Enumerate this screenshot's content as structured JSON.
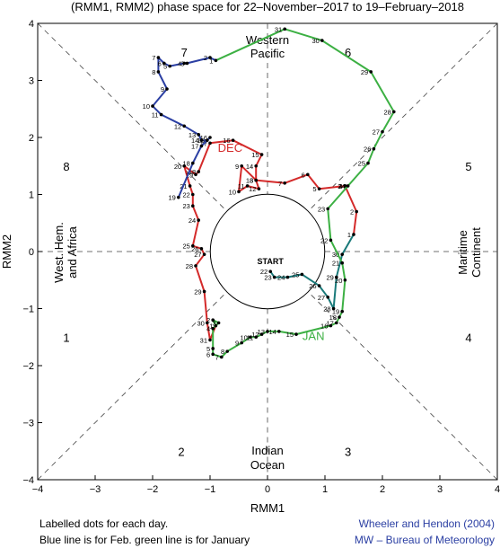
{
  "chart_data": {
    "type": "line",
    "title": "(RMM1, RMM2) phase space for   22–November–2017 to 19–February–2018",
    "xlabel": "RMM1",
    "ylabel": "RMM2",
    "xlim": [
      -4,
      4
    ],
    "ylim": [
      -4,
      4
    ],
    "x_ticks": [
      "−4",
      "−3",
      "−2",
      "−1",
      "0",
      "1",
      "2",
      "3",
      "4"
    ],
    "y_ticks": [
      "−4",
      "−3",
      "−2",
      "−1",
      "0",
      "1",
      "2",
      "3",
      "4"
    ],
    "phase_labels": [
      {
        "text": "1",
        "x": -3.5,
        "y": -1.5
      },
      {
        "text": "2",
        "x": -1.5,
        "y": -3.5
      },
      {
        "text": "3",
        "x": 1.4,
        "y": -3.5
      },
      {
        "text": "4",
        "x": 3.5,
        "y": -1.5
      },
      {
        "text": "5",
        "x": 3.5,
        "y": 1.5
      },
      {
        "text": "6",
        "x": 1.4,
        "y": 3.5
      },
      {
        "text": "7",
        "x": -1.45,
        "y": 3.5
      },
      {
        "text": "8",
        "x": -3.5,
        "y": 1.5
      }
    ],
    "region_labels": {
      "western_pacific": [
        "Western",
        "Pacific"
      ],
      "west_hem": [
        "West. Hem.",
        "and Africa"
      ],
      "maritime": [
        "Maritime",
        "Continent"
      ],
      "indian": [
        "Indian",
        "Ocean"
      ]
    },
    "start_label": "START",
    "series": [
      {
        "name": "Nov",
        "color": "#1a7a7a",
        "points": [
          {
            "day": "22",
            "x": 0.05,
            "y": -0.35
          },
          {
            "day": "23",
            "x": 0.12,
            "y": -0.45
          },
          {
            "day": "24",
            "x": 0.35,
            "y": -0.45
          },
          {
            "day": "25",
            "x": 0.6,
            "y": -0.4
          },
          {
            "day": "26",
            "x": 0.9,
            "y": -0.6
          },
          {
            "day": "27",
            "x": 1.05,
            "y": -0.8
          },
          {
            "day": "28",
            "x": 1.15,
            "y": -1.0
          },
          {
            "day": "29",
            "x": 1.2,
            "y": -0.45
          },
          {
            "day": "30",
            "x": 1.3,
            "y": -0.05
          }
        ]
      },
      {
        "name": "DEC",
        "color": "#d42a2a",
        "points": [
          {
            "day": "1",
            "x": 1.5,
            "y": 0.3
          },
          {
            "day": "2",
            "x": 1.55,
            "y": 0.7
          },
          {
            "day": "3",
            "x": 1.35,
            "y": 1.15
          },
          {
            "day": "4",
            "x": 1.35,
            "y": 1.15
          },
          {
            "day": "5",
            "x": 0.9,
            "y": 1.1
          },
          {
            "day": "6",
            "x": 0.7,
            "y": 1.35
          },
          {
            "day": "7",
            "x": 0.3,
            "y": 1.2
          },
          {
            "day": "8",
            "x": -0.2,
            "y": 1.25
          },
          {
            "day": "9",
            "x": -0.45,
            "y": 1.5
          },
          {
            "day": "10",
            "x": -0.5,
            "y": 1.05
          },
          {
            "day": "11",
            "x": -0.35,
            "y": 1.15
          },
          {
            "day": "12",
            "x": -0.15,
            "y": 1.1
          },
          {
            "day": "13",
            "x": -0.2,
            "y": 1.25
          },
          {
            "day": "14",
            "x": -0.2,
            "y": 1.5
          },
          {
            "day": "15",
            "x": -0.1,
            "y": 1.7
          },
          {
            "day": "16",
            "x": -0.6,
            "y": 1.95
          },
          {
            "day": "17",
            "x": -1.0,
            "y": 1.9
          },
          {
            "day": "18",
            "x": -1.2,
            "y": 1.4
          },
          {
            "day": "19",
            "x": -1.25,
            "y": 1.35
          },
          {
            "day": "20",
            "x": -1.45,
            "y": 1.5
          },
          {
            "day": "21",
            "x": -1.35,
            "y": 1.15
          },
          {
            "day": "22",
            "x": -1.3,
            "y": 1.0
          },
          {
            "day": "23",
            "x": -1.3,
            "y": 0.8
          },
          {
            "day": "24",
            "x": -1.2,
            "y": 0.55
          },
          {
            "day": "25",
            "x": -1.3,
            "y": 0.1
          },
          {
            "day": "26",
            "x": -1.15,
            "y": 0.05
          },
          {
            "day": "27",
            "x": -1.1,
            "y": -0.05
          },
          {
            "day": "28",
            "x": -1.25,
            "y": -0.25
          },
          {
            "day": "29",
            "x": -1.1,
            "y": -0.7
          },
          {
            "day": "30",
            "x": -1.05,
            "y": -1.25
          },
          {
            "day": "31",
            "x": -1.0,
            "y": -1.55
          }
        ]
      },
      {
        "name": "JAN",
        "color": "#3cb043",
        "points": [
          {
            "day": "1",
            "x": -0.9,
            "y": -1.3
          },
          {
            "day": "2",
            "x": -0.95,
            "y": -1.2
          },
          {
            "day": "3",
            "x": -0.85,
            "y": -1.25
          },
          {
            "day": "4",
            "x": -0.95,
            "y": -1.35
          },
          {
            "day": "5",
            "x": -0.95,
            "y": -1.7
          },
          {
            "day": "6",
            "x": -0.95,
            "y": -1.8
          },
          {
            "day": "7",
            "x": -0.8,
            "y": -1.85
          },
          {
            "day": "8",
            "x": -0.7,
            "y": -1.75
          },
          {
            "day": "9",
            "x": -0.45,
            "y": -1.6
          },
          {
            "day": "10",
            "x": -0.3,
            "y": -1.5
          },
          {
            "day": "11",
            "x": -0.2,
            "y": -1.5
          },
          {
            "day": "12",
            "x": -0.1,
            "y": -1.45
          },
          {
            "day": "13",
            "x": 0.0,
            "y": -1.4
          },
          {
            "day": "14",
            "x": 0.2,
            "y": -1.4
          },
          {
            "day": "15",
            "x": 0.5,
            "y": -1.45
          },
          {
            "day": "16",
            "x": 1.1,
            "y": -1.3
          },
          {
            "day": "17",
            "x": 1.2,
            "y": -1.25
          },
          {
            "day": "18",
            "x": 1.25,
            "y": -1.15
          },
          {
            "day": "19",
            "x": 1.3,
            "y": -1.05
          },
          {
            "day": "20",
            "x": 1.35,
            "y": -0.5
          },
          {
            "day": "21",
            "x": 1.3,
            "y": -0.2
          },
          {
            "day": "22",
            "x": 1.1,
            "y": 0.2
          },
          {
            "day": "23",
            "x": 1.05,
            "y": 0.75
          },
          {
            "day": "24",
            "x": 1.4,
            "y": 1.15
          },
          {
            "day": "25",
            "x": 1.75,
            "y": 1.55
          },
          {
            "day": "26",
            "x": 1.85,
            "y": 1.8
          },
          {
            "day": "27",
            "x": 2.0,
            "y": 2.1
          },
          {
            "day": "28",
            "x": 2.2,
            "y": 2.45
          },
          {
            "day": "29",
            "x": 1.8,
            "y": 3.15
          },
          {
            "day": "30",
            "x": 0.95,
            "y": 3.7
          },
          {
            "day": "31",
            "x": 0.3,
            "y": 3.9
          }
        ]
      },
      {
        "name": "Feb",
        "color": "#2b3fa3",
        "points": [
          {
            "day": "1",
            "x": -0.9,
            "y": 3.35
          },
          {
            "day": "2",
            "x": -1.0,
            "y": 3.4
          },
          {
            "day": "3",
            "x": -1.4,
            "y": 3.3
          },
          {
            "day": "4",
            "x": -1.45,
            "y": 3.3
          },
          {
            "day": "5",
            "x": -1.7,
            "y": 3.25
          },
          {
            "day": "6",
            "x": -1.8,
            "y": 3.3
          },
          {
            "day": "7",
            "x": -1.9,
            "y": 3.4
          },
          {
            "day": "8",
            "x": -1.9,
            "y": 3.15
          },
          {
            "day": "9",
            "x": -1.75,
            "y": 2.85
          },
          {
            "day": "10",
            "x": -2.0,
            "y": 2.55
          },
          {
            "day": "11",
            "x": -1.85,
            "y": 2.4
          },
          {
            "day": "12",
            "x": -1.45,
            "y": 2.2
          },
          {
            "day": "13",
            "x": -1.2,
            "y": 2.05
          },
          {
            "day": "14",
            "x": -1.15,
            "y": 1.95
          },
          {
            "day": "15",
            "x": -1.05,
            "y": 1.95
          },
          {
            "day": "16",
            "x": -1.0,
            "y": 2.0
          },
          {
            "day": "17",
            "x": -1.15,
            "y": 1.85
          },
          {
            "day": "18",
            "x": -1.3,
            "y": 1.55
          },
          {
            "day": "19",
            "x": -1.55,
            "y": 0.95
          }
        ]
      }
    ],
    "month_labels": [
      {
        "text": "DEC",
        "x": -0.65,
        "y": 1.75,
        "color": "#d42a2a"
      },
      {
        "text": "JAN",
        "x": 0.8,
        "y": -1.55,
        "color": "#3cb043"
      }
    ]
  },
  "footer": {
    "left_line1": "Labelled dots for each day.",
    "left_line2": "Blue line is for Feb. green line is for January",
    "right_line1": "Wheeler and Hendon (2004)",
    "right_line2": "MW – Bureau of Meteorology",
    "right_color": "#2b3fa3"
  }
}
